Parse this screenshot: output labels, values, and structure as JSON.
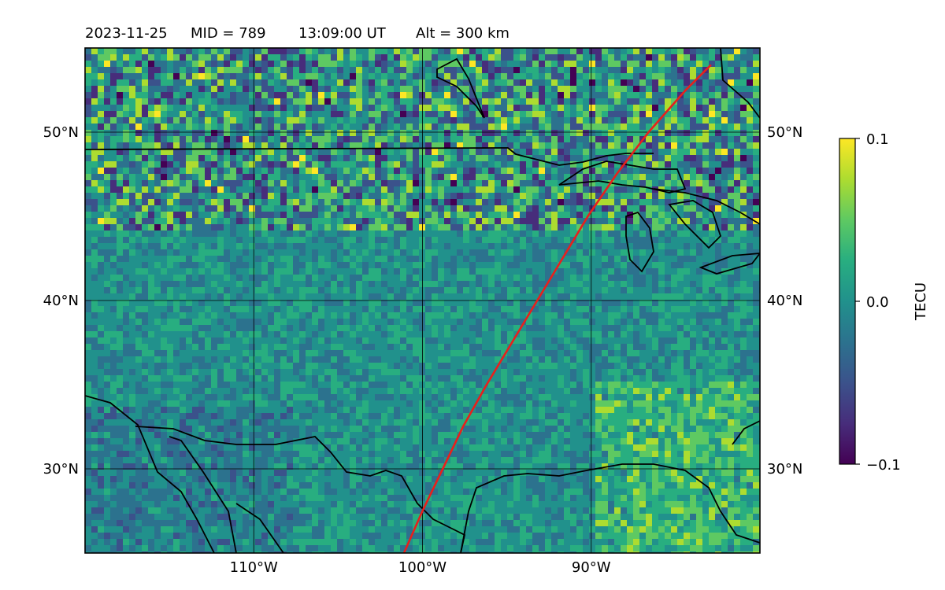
{
  "header": {
    "date": "2023-11-25",
    "mid": "MID = 789",
    "time": "13:09:00  UT",
    "alt": "Alt = 300 km"
  },
  "map": {
    "lon_range": [
      -120,
      -80
    ],
    "lat_range": [
      25,
      55
    ],
    "gridlines": true,
    "lat_ticks": [
      {
        "value": 50,
        "label": "50°N"
      },
      {
        "value": 40,
        "label": "40°N"
      },
      {
        "value": 30,
        "label": "30°N"
      }
    ],
    "lon_ticks": [
      {
        "value": -110,
        "label": "110°W"
      },
      {
        "value": -100,
        "label": "100°W"
      },
      {
        "value": -90,
        "label": "90°W"
      }
    ],
    "track_color": "#e8201c",
    "track_latlon": [
      [
        25.0,
        -101.1
      ],
      [
        27.5,
        -100.0
      ],
      [
        30.0,
        -98.8
      ],
      [
        32.5,
        -97.6
      ],
      [
        35.0,
        -96.2
      ],
      [
        37.5,
        -94.7
      ],
      [
        40.0,
        -93.2
      ],
      [
        42.5,
        -91.7
      ],
      [
        45.0,
        -90.2
      ],
      [
        47.5,
        -88.5
      ],
      [
        50.0,
        -86.6
      ],
      [
        52.5,
        -84.4
      ],
      [
        54.0,
        -82.9
      ]
    ]
  },
  "colorbar": {
    "label": "TECU",
    "cmap": "viridis",
    "vmin": -0.1,
    "vmax": 0.1,
    "ticks": [
      {
        "value": 0.1,
        "label": "0.1"
      },
      {
        "value": 0.0,
        "label": "0.0"
      },
      {
        "value": -0.1,
        "label": "−0.1"
      }
    ]
  }
}
